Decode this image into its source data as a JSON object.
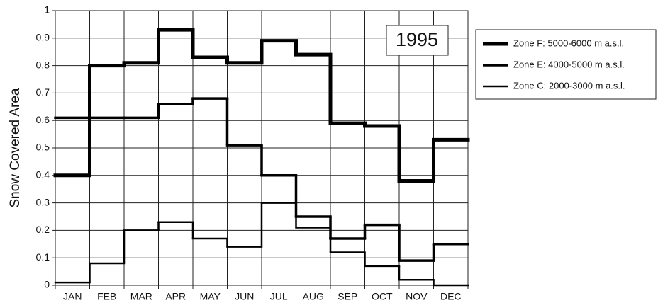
{
  "chart_data": {
    "type": "step",
    "ylabel": "Snow Covered Area",
    "annotation": "1995",
    "categories": [
      "JAN",
      "FEB",
      "MAR",
      "APR",
      "MAY",
      "JUN",
      "JUL",
      "AUG",
      "SEP",
      "OCT",
      "NOV",
      "DEC"
    ],
    "series": [
      {
        "name": "Zone F: 5000-6000 m a.s.l.",
        "color": "#000000",
        "linewidth": 5,
        "values": [
          0.4,
          0.8,
          0.81,
          0.93,
          0.83,
          0.81,
          0.89,
          0.84,
          0.59,
          0.58,
          0.38,
          0.53
        ]
      },
      {
        "name": "Zone E: 4000-5000 m a.s.l.",
        "color": "#000000",
        "linewidth": 3.5,
        "values": [
          0.61,
          0.61,
          0.61,
          0.66,
          0.68,
          0.51,
          0.4,
          0.25,
          0.17,
          0.22,
          0.09,
          0.15
        ]
      },
      {
        "name": "Zone C: 2000-3000 m a.s.l.",
        "color": "#000000",
        "linewidth": 2.5,
        "values": [
          0.01,
          0.08,
          0.2,
          0.23,
          0.17,
          0.14,
          0.3,
          0.21,
          0.12,
          0.07,
          0.02,
          0.0
        ]
      }
    ],
    "ylim": [
      0,
      1
    ],
    "yticks": [
      0,
      0.1,
      0.2,
      0.3,
      0.4,
      0.5,
      0.6,
      0.7,
      0.8,
      0.9,
      1
    ],
    "grid": true,
    "legend": "right"
  }
}
